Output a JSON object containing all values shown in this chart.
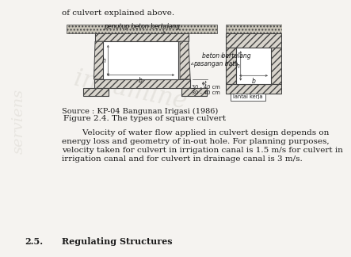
{
  "title": "Figure 2.4. The types of square culvert",
  "source_text": "Source : KP-04 Bangunan Irigasi (1986)",
  "body_text_lines": [
    "        Velocity of water flow applied in culvert design depends on",
    "energy loss and geometry of in-out hole. For planning purposes,",
    "velocity taken for culvert in irrigation canal is 1.5 m/s for culvert in",
    "irrigation canal and for culvert in drainage canal is 3 m/s."
  ],
  "section_header": "2.5.",
  "section_title": "Regulating Structures",
  "top_text": "of culvert explained above.",
  "bg_color": "#f5f3f0",
  "hatch_fc": "#d8d4cc",
  "soil_fc": "#c8c4b8",
  "line_color": "#444444",
  "text_color": "#1a1a1a",
  "watermark_color": "#dddad4",
  "label_fontsize": 5.5,
  "body_fontsize": 7.5
}
